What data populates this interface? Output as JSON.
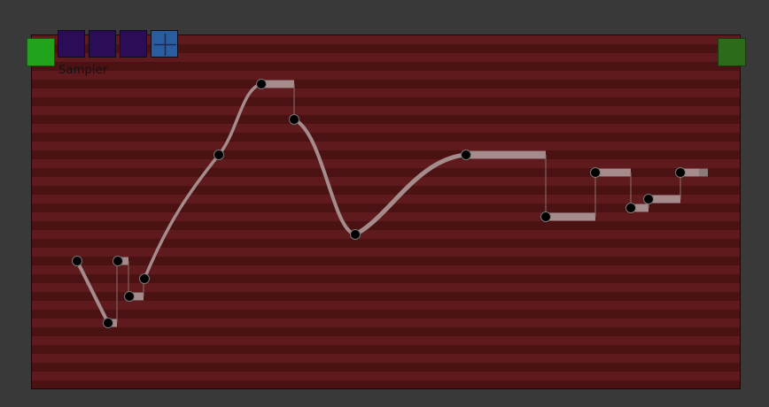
{
  "node": {
    "title": "Sampler"
  },
  "toolbar": {
    "buttons": [
      {
        "name": "preset-slot-1",
        "icon": "blank-square-icon"
      },
      {
        "name": "preset-slot-2",
        "icon": "blank-square-icon"
      },
      {
        "name": "preset-slot-3",
        "icon": "blank-square-icon"
      },
      {
        "name": "grid-toggle",
        "icon": "grid-cross-icon"
      }
    ]
  },
  "colors": {
    "panel_stripe_light": "#5e1a1c",
    "panel_stripe_dark": "#4b1214",
    "input_port": "#21a31c",
    "output_port": "#2c6b1a",
    "slot_purple": "#2b0c57",
    "grid_button": "#2a5da0",
    "curve": "#a58b8b",
    "point": "#000000"
  }
}
